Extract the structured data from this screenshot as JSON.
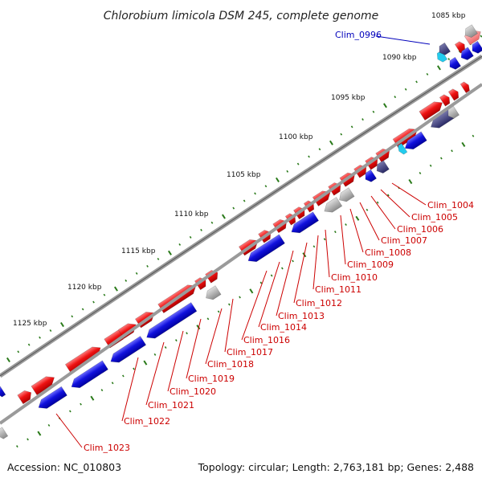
{
  "title": "Chlorobium limicola DSM 245, complete genome",
  "accession": "Accession: NC_010803",
  "summary": "Topology: circular; Length: 2,763,181 bp; Genes: 2,488",
  "ticks": [
    "1085 kbp",
    "1090 kbp",
    "1095 kbp",
    "1100 kbp",
    "1105 kbp",
    "1110 kbp",
    "1115 kbp",
    "1120 kbp",
    "1125 kbp"
  ],
  "highlight_label": "Clim_0996",
  "gene_labels": [
    "Clim_1004",
    "Clim_1005",
    "Clim_1006",
    "Clim_1007",
    "Clim_1008",
    "Clim_1009",
    "Clim_1010",
    "Clim_1011",
    "Clim_1012",
    "Clim_1013",
    "Clim_1014",
    "Clim_1016",
    "Clim_1017",
    "Clim_1018",
    "Clim_1019",
    "Clim_1020",
    "Clim_1021",
    "Clim_1022",
    "Clim_1023"
  ],
  "colors": {
    "forward": "#ee1111",
    "reverse": "#1111dd",
    "grey": "#9a9a9a",
    "navy": "#33337a",
    "cyan": "#22ccee",
    "label_red": "#cc0000",
    "label_blue": "#0000bb",
    "tick_green": "#2a7a1a"
  }
}
